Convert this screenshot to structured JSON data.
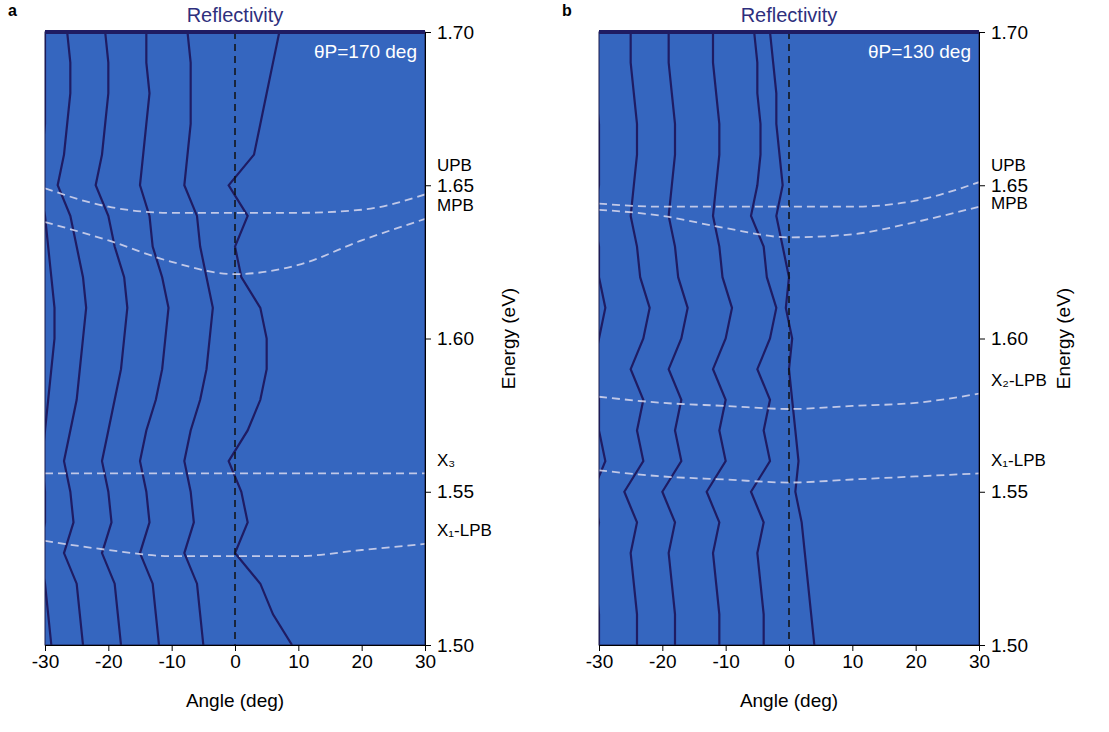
{
  "chart_data": [
    {
      "type": "line",
      "panel": "a",
      "title": "Reflectivity",
      "annotation": "θP=170 deg",
      "x_label": "Angle (deg)",
      "y_label": "Energy (eV)",
      "color": "#3566bf",
      "xlim": [
        -30,
        30
      ],
      "xticks": [
        -30,
        -20,
        -10,
        0,
        10,
        20,
        30
      ],
      "ylim": [
        1.5,
        1.7
      ],
      "yticks": [
        {
          "value": 1.5,
          "label": "1.50"
        },
        {
          "value": 1.55,
          "label": "1.55"
        },
        {
          "value": 1.6,
          "label": "1.60"
        },
        {
          "value": 1.65,
          "label": "1.65"
        },
        {
          "value": 1.7,
          "label": "1.70"
        }
      ],
      "reference_x": 0,
      "x": [
        -30,
        -20,
        -10,
        0,
        10,
        20,
        30
      ],
      "series": [
        {
          "name": "UPB",
          "color": "#d9d9ee",
          "line_style": "dashed",
          "values": [
            1.649,
            1.643,
            1.641,
            1.641,
            1.641,
            1.642,
            1.647
          ]
        },
        {
          "name": "MPB",
          "color": "#d9d9ee",
          "line_style": "dashed",
          "values": [
            1.638,
            1.632,
            1.625,
            1.621,
            1.624,
            1.632,
            1.639
          ]
        },
        {
          "name": "X₃",
          "color": "#d9d9ee",
          "line_style": "dashed",
          "values": [
            1.556,
            1.556,
            1.556,
            1.556,
            1.556,
            1.556,
            1.556
          ]
        },
        {
          "name": "X₁-LPB",
          "color": "#d9d9ee",
          "line_style": "dashed",
          "values": [
            1.534,
            1.531,
            1.529,
            1.529,
            1.529,
            1.531,
            1.533
          ]
        }
      ],
      "energy": [
        1.5,
        1.51,
        1.52,
        1.53,
        1.54,
        1.55,
        1.56,
        1.57,
        1.58,
        1.59,
        1.6,
        1.61,
        1.62,
        1.63,
        1.64,
        1.65,
        1.66,
        1.67,
        1.68,
        1.69,
        1.7
      ],
      "spectra": [
        {
          "color": "#1f1c63",
          "x": [
            -29,
            -29.5,
            -30,
            -31,
            -30,
            -30,
            -30.5,
            -30,
            -29.5,
            -29,
            -28.5,
            -28.5,
            -29,
            -29.5,
            -30,
            -31,
            -30.5,
            -30,
            -30,
            -30,
            -30
          ]
        },
        {
          "color": "#1f1c63",
          "x": [
            -24,
            -24.5,
            -25,
            -27,
            -25.5,
            -26,
            -27,
            -26,
            -25,
            -24.5,
            -24,
            -23.5,
            -24,
            -25,
            -26,
            -28,
            -27,
            -26.5,
            -26,
            -26,
            -26.5
          ]
        },
        {
          "color": "#1f1c63",
          "x": [
            -18,
            -18.5,
            -19,
            -21,
            -19.5,
            -20,
            -21,
            -20,
            -19,
            -18,
            -17.5,
            -17,
            -17.5,
            -19,
            -20,
            -22,
            -21,
            -20.5,
            -20,
            -20,
            -20.5
          ]
        },
        {
          "color": "#1f1c63",
          "x": [
            -12,
            -12.5,
            -13,
            -15,
            -13.5,
            -14,
            -15,
            -14,
            -12.5,
            -11.5,
            -11,
            -10.5,
            -11.5,
            -13,
            -13.5,
            -15,
            -14.5,
            -14,
            -13.5,
            -14,
            -14
          ]
        },
        {
          "color": "#1f1c63",
          "x": [
            -5,
            -5.5,
            -6,
            -8,
            -6.5,
            -7,
            -8,
            -7,
            -5.5,
            -4.5,
            -4,
            -3.5,
            -4.5,
            -5.5,
            -6,
            -8,
            -7.5,
            -7,
            -7,
            -7,
            -7.5
          ]
        },
        {
          "color": "#1f1c63",
          "x": [
            9,
            6,
            4,
            0,
            2,
            1,
            -1,
            2,
            4,
            5,
            5,
            4,
            1,
            0,
            2,
            -1,
            3,
            4,
            5,
            6,
            7
          ]
        }
      ]
    },
    {
      "type": "line",
      "panel": "b",
      "title": "Reflectivity",
      "annotation": "θP=130 deg",
      "x_label": "Angle (deg)",
      "y_label": "Energy (eV)",
      "color": "#3566bf",
      "xlim": [
        -30,
        30
      ],
      "xticks": [
        -30,
        -20,
        -10,
        0,
        10,
        20,
        30
      ],
      "ylim": [
        1.5,
        1.7
      ],
      "yticks": [
        {
          "value": 1.5,
          "label": "1.50"
        },
        {
          "value": 1.55,
          "label": "1.55"
        },
        {
          "value": 1.6,
          "label": "1.60"
        },
        {
          "value": 1.65,
          "label": "1.65"
        },
        {
          "value": 1.7,
          "label": "1.70"
        }
      ],
      "reference_x": 0,
      "x": [
        -30,
        -20,
        -10,
        0,
        10,
        20,
        30
      ],
      "series": [
        {
          "name": "UPB",
          "color": "#d9d9ee",
          "line_style": "dashed",
          "values": [
            1.644,
            1.643,
            1.643,
            1.643,
            1.643,
            1.645,
            1.651
          ]
        },
        {
          "name": "MPB",
          "color": "#d9d9ee",
          "line_style": "dashed",
          "values": [
            1.642,
            1.64,
            1.636,
            1.633,
            1.634,
            1.638,
            1.643
          ]
        },
        {
          "name": "X₂-LPB",
          "color": "#d9d9ee",
          "line_style": "dashed",
          "values": [
            1.581,
            1.579,
            1.578,
            1.577,
            1.578,
            1.579,
            1.582
          ]
        },
        {
          "name": "X₁-LPB",
          "color": "#d9d9ee",
          "line_style": "dashed",
          "values": [
            1.557,
            1.555,
            1.554,
            1.553,
            1.554,
            1.555,
            1.556
          ]
        }
      ],
      "energy": [
        1.5,
        1.51,
        1.52,
        1.53,
        1.54,
        1.55,
        1.56,
        1.57,
        1.58,
        1.59,
        1.6,
        1.61,
        1.62,
        1.63,
        1.64,
        1.65,
        1.66,
        1.67,
        1.68,
        1.69,
        1.7
      ],
      "spectra": [
        {
          "color": "#1f1c63",
          "x": [
            -30,
            -30,
            -30.5,
            -31,
            -30,
            -31,
            -29,
            -30,
            -30,
            -31,
            -30,
            -29,
            -30,
            -30,
            -31,
            -30,
            -30,
            -30,
            -30.5,
            -31,
            -31
          ]
        },
        {
          "color": "#1f1c63",
          "x": [
            -24,
            -24,
            -24.5,
            -25,
            -24,
            -26,
            -23,
            -24,
            -23,
            -25,
            -23,
            -22,
            -23.5,
            -24,
            -25,
            -24.5,
            -24,
            -24,
            -24.5,
            -25,
            -25
          ]
        },
        {
          "color": "#1f1c63",
          "x": [
            -18,
            -18,
            -18.5,
            -19,
            -18,
            -20,
            -17,
            -18,
            -17,
            -19,
            -17,
            -16,
            -17.5,
            -18,
            -19,
            -18.5,
            -18,
            -18,
            -18.5,
            -19,
            -19
          ]
        },
        {
          "color": "#1f1c63",
          "x": [
            -11,
            -11,
            -11.5,
            -12,
            -11,
            -13,
            -10,
            -11,
            -10,
            -12,
            -10,
            -9,
            -10.5,
            -11,
            -12,
            -11.5,
            -11,
            -11,
            -11.5,
            -12,
            -12
          ]
        },
        {
          "color": "#1f1c63",
          "x": [
            -4,
            -4,
            -4.5,
            -5,
            -4,
            -6,
            -3,
            -4,
            -3,
            -5,
            -3,
            -2,
            -3.5,
            -4,
            -6,
            -5,
            -4.5,
            -4.5,
            -5,
            -5,
            -5.5
          ]
        },
        {
          "color": "#1f1c63",
          "x": [
            4,
            3.5,
            3,
            2.5,
            2,
            1,
            1.5,
            1,
            0.5,
            0,
            0.5,
            -0.5,
            0,
            -1,
            -2,
            -1,
            -1.5,
            -2,
            -2,
            -2.5,
            -3
          ]
        }
      ]
    }
  ]
}
